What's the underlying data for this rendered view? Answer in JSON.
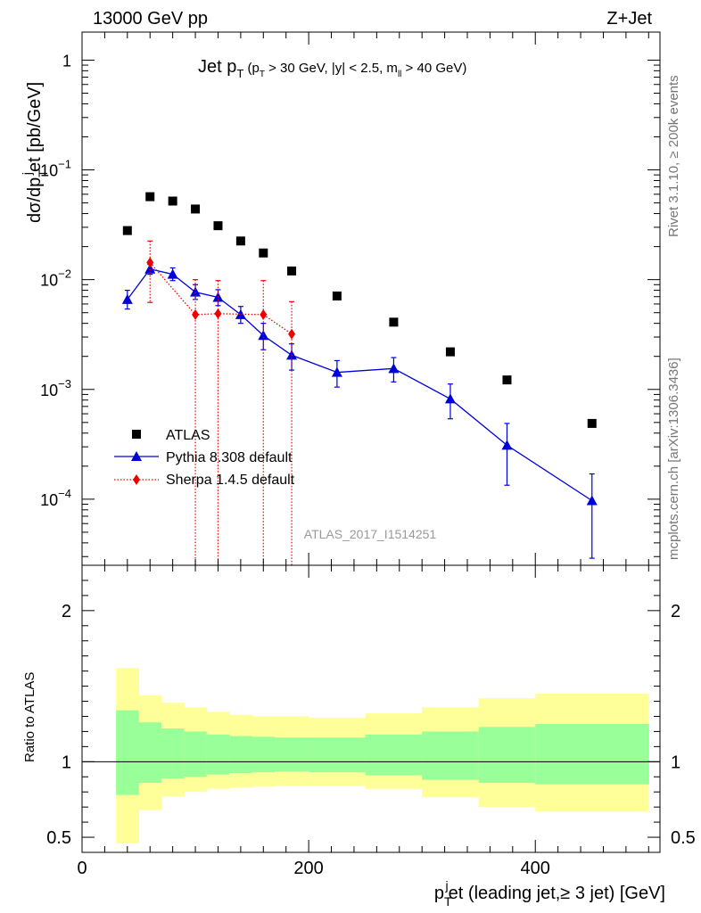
{
  "header": {
    "energy": "13000 GeV pp",
    "process": "Z+Jet"
  },
  "side_labels": {
    "rivet": "Rivet 3.1.10, ≥ 200k events",
    "mcplots": "mcplots.cern.ch [arXiv:1306.3436]"
  },
  "chart_data": [
    {
      "type": "scatter",
      "title": "Jet pT (pT > 30 GeV, |y| < 2.5, mll > 40 GeV)",
      "title_parts": {
        "main": "Jet p",
        "sub1": "T",
        "cut1": " (p",
        "sub2": "T",
        "cut2": " > 30 GeV, |y| < 2.5, m",
        "sub3": "ll",
        "cut3": " > 40 GeV)"
      },
      "ylabel": "dσ/dpTjet [pb/GeV]",
      "ylabel_parts": {
        "a": "dσ/dp",
        "sub": "T",
        "sup": "j",
        "b": "et [pb/GeV]"
      },
      "yscale": "log",
      "ylim": [
        2.5e-05,
        1.8
      ],
      "xlim": [
        0,
        510
      ],
      "y_ticks": [
        {
          "v": 1,
          "mant": "1",
          "exp": ""
        },
        {
          "v": 0.1,
          "mant": "10",
          "exp": "−1"
        },
        {
          "v": 0.01,
          "mant": "10",
          "exp": "−2"
        },
        {
          "v": 0.001,
          "mant": "10",
          "exp": "−3"
        },
        {
          "v": 0.0001,
          "mant": "10",
          "exp": "−4"
        }
      ],
      "watermark": "ATLAS_2017_I1514251",
      "legend_position": "bottom-left",
      "series": [
        {
          "name": "ATLAS",
          "color": "#000000",
          "marker": "square",
          "x": [
            40,
            60,
            80,
            100,
            120,
            140,
            160,
            185,
            225,
            275,
            325,
            375,
            450
          ],
          "y": [
            0.028,
            0.057,
            0.052,
            0.044,
            0.031,
            0.0225,
            0.0175,
            0.012,
            0.0071,
            0.0041,
            0.0022,
            0.00122,
            0.00049
          ]
        },
        {
          "name": "Pythia 8.308 default",
          "color": "#0000dd",
          "marker": "triangle",
          "line": "solid",
          "x": [
            40,
            60,
            80,
            100,
            120,
            140,
            160,
            185,
            225,
            275,
            325,
            375,
            450
          ],
          "y": [
            0.0066,
            0.0125,
            0.0112,
            0.0077,
            0.0069,
            0.0048,
            0.0031,
            0.00205,
            0.00143,
            0.00155,
            0.00082,
            0.00031,
            9.7e-05
          ],
          "err_lo": [
            0.0054,
            0.0112,
            0.0098,
            0.0066,
            0.0058,
            0.004,
            0.0023,
            0.0015,
            0.00105,
            0.00117,
            0.00054,
            0.000134,
            2.9e-05
          ],
          "err_hi": [
            0.008,
            0.0138,
            0.0128,
            0.009,
            0.0081,
            0.0057,
            0.004,
            0.0026,
            0.00183,
            0.00195,
            0.00112,
            0.00049,
            0.00017
          ]
        },
        {
          "name": "Sherpa 1.4.5 default",
          "color": "#ee0000",
          "marker": "diamond",
          "line": "dotted",
          "x": [
            60,
            100,
            120,
            160,
            185
          ],
          "y": [
            0.0143,
            0.0048,
            0.0049,
            0.0048,
            0.0032
          ],
          "err_lo": [
            0.0062,
            2.5e-05,
            2.5e-05,
            2.5e-05,
            2.5e-05
          ],
          "err_hi": [
            0.0225,
            0.01,
            0.0098,
            0.0098,
            0.0063
          ]
        }
      ]
    },
    {
      "type": "area",
      "ylabel": "Ratio to ATLAS",
      "xlabel": "pTjet (leading jet,≥ 3 jet) [GeV]",
      "xlabel_parts": {
        "a": "p",
        "sub": "T",
        "sup": "j",
        "b": "et (leading jet,≥ 3 jet) [GeV]"
      },
      "xlim": [
        0,
        510
      ],
      "ylim": [
        0.4,
        2.3
      ],
      "x_ticks": [
        0,
        200,
        400
      ],
      "y_ticks": [
        0.5,
        1,
        2
      ],
      "reference_line": 1,
      "bands": {
        "edges": [
          30,
          50,
          70,
          90,
          110,
          130,
          150,
          170,
          200,
          250,
          300,
          350,
          400,
          500
        ],
        "outer_lo": [
          0.46,
          0.68,
          0.77,
          0.8,
          0.82,
          0.83,
          0.835,
          0.84,
          0.84,
          0.82,
          0.765,
          0.7,
          0.67
        ],
        "outer_hi": [
          1.62,
          1.44,
          1.39,
          1.36,
          1.33,
          1.31,
          1.3,
          1.3,
          1.29,
          1.32,
          1.36,
          1.42,
          1.45
        ],
        "inner_lo": [
          0.78,
          0.86,
          0.89,
          0.9,
          0.915,
          0.925,
          0.93,
          0.935,
          0.93,
          0.91,
          0.88,
          0.86,
          0.85
        ],
        "inner_hi": [
          1.34,
          1.26,
          1.22,
          1.2,
          1.18,
          1.17,
          1.165,
          1.16,
          1.16,
          1.18,
          1.2,
          1.23,
          1.25
        ],
        "outer_color": "#ffff99",
        "inner_color": "#99ff99"
      }
    }
  ]
}
